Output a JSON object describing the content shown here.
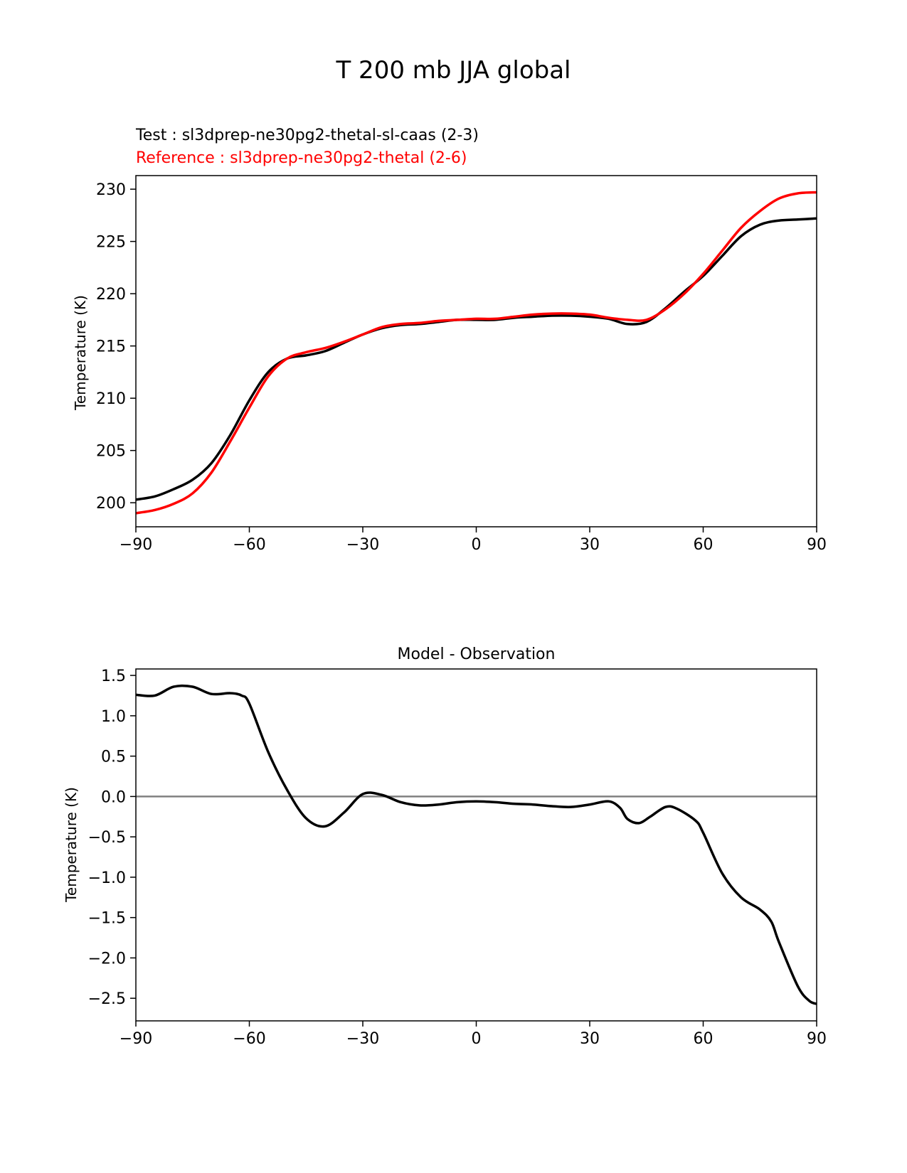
{
  "figure": {
    "suptitle": "T 200 mb JJA global"
  },
  "chart_data": [
    {
      "type": "line",
      "test_label": "Test : sl3dprep-ne30pg2-thetal-sl-caas (2-3)",
      "reference_label": "Reference : sl3dprep-ne30pg2-thetal (2-6)",
      "xlabel": "",
      "ylabel": "Temperature (K)",
      "xlim": [
        -90,
        90
      ],
      "ylim": [
        197.7,
        231.3
      ],
      "xticks": [
        -90,
        -60,
        -30,
        0,
        30,
        60,
        90
      ],
      "xtick_labels": [
        "−90",
        "−60",
        "−30",
        "0",
        "30",
        "60",
        "90"
      ],
      "yticks": [
        200,
        205,
        210,
        215,
        220,
        225,
        230
      ],
      "ytick_labels": [
        "200",
        "205",
        "210",
        "215",
        "220",
        "225",
        "230"
      ],
      "grid": false,
      "series": [
        {
          "name": "Test : sl3dprep-ne30pg2-thetal-sl-caas (2-3)",
          "color": "#000000",
          "x": [
            -90,
            -85,
            -80,
            -75,
            -70,
            -65,
            -60,
            -55,
            -50,
            -45,
            -40,
            -35,
            -30,
            -25,
            -20,
            -15,
            -10,
            -5,
            0,
            5,
            10,
            15,
            20,
            25,
            30,
            35,
            40,
            45,
            50,
            55,
            60,
            65,
            70,
            75,
            80,
            85,
            90
          ],
          "y": [
            200.3,
            200.6,
            201.3,
            202.2,
            203.8,
            206.5,
            209.8,
            212.5,
            213.8,
            214.1,
            214.5,
            215.3,
            216.1,
            216.7,
            217.0,
            217.1,
            217.3,
            217.5,
            217.5,
            217.5,
            217.7,
            217.8,
            217.9,
            217.9,
            217.8,
            217.6,
            217.1,
            217.3,
            218.6,
            220.2,
            221.7,
            223.6,
            225.5,
            226.6,
            227.0,
            227.1,
            227.2
          ]
        },
        {
          "name": "Reference : sl3dprep-ne30pg2-thetal (2-6)",
          "color": "#ff0000",
          "x": [
            -90,
            -85,
            -80,
            -75,
            -70,
            -65,
            -60,
            -55,
            -50,
            -45,
            -40,
            -35,
            -30,
            -25,
            -20,
            -15,
            -10,
            -5,
            0,
            5,
            10,
            15,
            20,
            25,
            30,
            35,
            40,
            45,
            50,
            55,
            60,
            65,
            70,
            75,
            80,
            85,
            90
          ],
          "y": [
            199.0,
            199.3,
            199.9,
            200.9,
            202.9,
            205.9,
            209.1,
            212.1,
            213.8,
            214.4,
            214.8,
            215.4,
            216.1,
            216.8,
            217.1,
            217.2,
            217.4,
            217.5,
            217.6,
            217.6,
            217.8,
            218.0,
            218.1,
            218.1,
            218.0,
            217.7,
            217.5,
            217.5,
            218.5,
            220.0,
            221.9,
            224.1,
            226.3,
            227.9,
            229.1,
            229.6,
            229.7
          ]
        }
      ]
    },
    {
      "type": "line",
      "title": "Model - Observation",
      "xlabel": "",
      "ylabel": "Temperature (K)",
      "xlim": [
        -90,
        90
      ],
      "ylim": [
        -2.78,
        1.58
      ],
      "xticks": [
        -90,
        -60,
        -30,
        0,
        30,
        60,
        90
      ],
      "xtick_labels": [
        "−90",
        "−60",
        "−30",
        "0",
        "30",
        "60",
        "90"
      ],
      "yticks": [
        1.5,
        1.0,
        0.5,
        0.0,
        -0.5,
        -1.0,
        -1.5,
        -2.0,
        -2.5
      ],
      "ytick_labels": [
        "1.5",
        "1.0",
        "0.5",
        "0.0",
        "−0.5",
        "−1.0",
        "−1.5",
        "−2.0",
        "−2.5"
      ],
      "zero_line_color": "#808080",
      "grid": false,
      "series": [
        {
          "color": "#000000",
          "x": [
            -90,
            -85,
            -80,
            -75,
            -70,
            -65,
            -62,
            -60,
            -55,
            -50,
            -45,
            -40,
            -35,
            -30,
            -25,
            -20,
            -15,
            -10,
            -5,
            0,
            5,
            10,
            15,
            20,
            25,
            30,
            35,
            38,
            40,
            43,
            46,
            50,
            53,
            58,
            60,
            65,
            70,
            75,
            78,
            80,
            85,
            88,
            90
          ],
          "y": [
            1.26,
            1.25,
            1.36,
            1.36,
            1.27,
            1.28,
            1.25,
            1.15,
            0.55,
            0.08,
            -0.27,
            -0.37,
            -0.2,
            0.03,
            0.02,
            -0.07,
            -0.11,
            -0.1,
            -0.07,
            -0.06,
            -0.07,
            -0.09,
            -0.1,
            -0.12,
            -0.13,
            -0.1,
            -0.06,
            -0.14,
            -0.28,
            -0.33,
            -0.25,
            -0.13,
            -0.15,
            -0.3,
            -0.45,
            -0.95,
            -1.25,
            -1.4,
            -1.55,
            -1.8,
            -2.35,
            -2.53,
            -2.57
          ]
        }
      ]
    }
  ]
}
